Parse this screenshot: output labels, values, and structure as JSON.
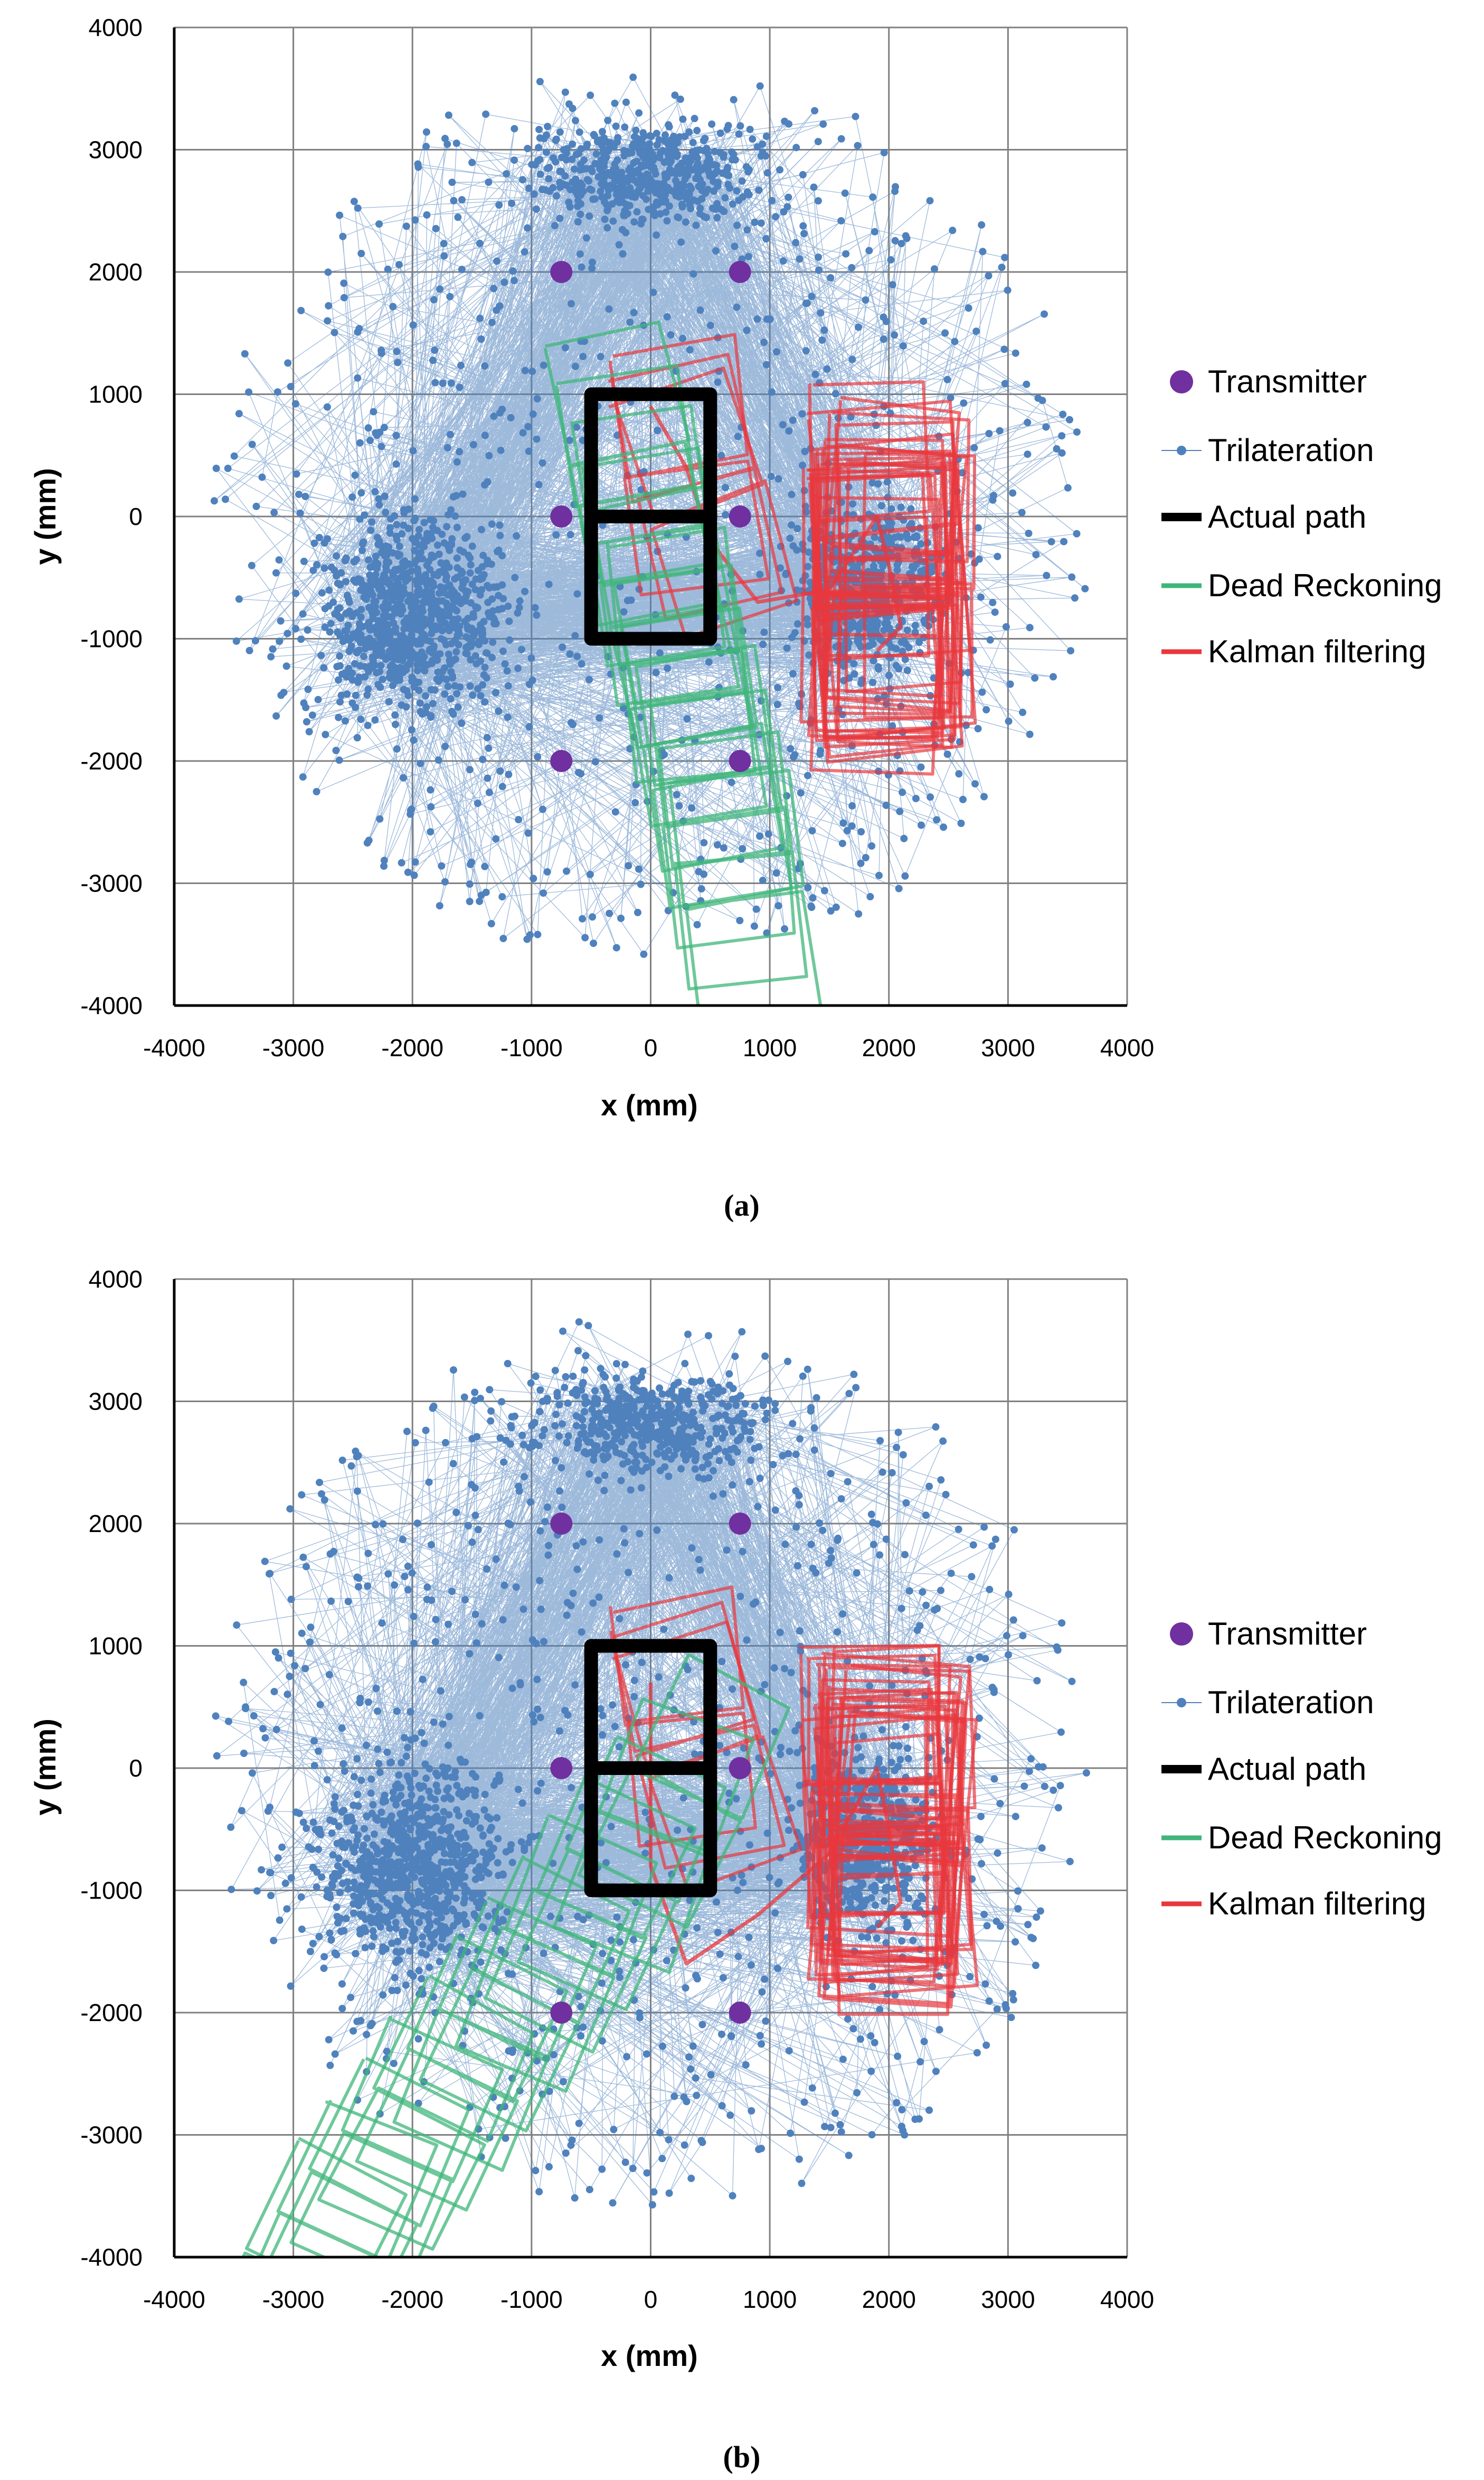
{
  "figure": {
    "captions": [
      "(a)",
      "(b)"
    ]
  },
  "colors": {
    "transmitter": "#7030a0",
    "trilateration": "#4f81bd",
    "actual_path": "#000000",
    "dead_reckoning": "#3fb57a",
    "kalman": "#e8383d",
    "grid": "#808080"
  },
  "chart_data": [
    {
      "type": "scatter",
      "panel": "(a)",
      "xlabel": "x (mm)",
      "ylabel": "y (mm)",
      "xlim": [
        -4000,
        4000
      ],
      "ylim": [
        -4000,
        4000
      ],
      "xticks": [
        -4000,
        -3000,
        -2000,
        -1000,
        0,
        1000,
        2000,
        3000,
        4000
      ],
      "yticks": [
        -4000,
        -3000,
        -2000,
        -1000,
        0,
        1000,
        2000,
        3000,
        4000
      ],
      "grid": true,
      "legend_position": "right",
      "legend": [
        "Transmitter",
        "Trilateration",
        "Actual path",
        "Dead Reckoning",
        "Kalman filtering"
      ],
      "transmitters": [
        [
          -750,
          2000
        ],
        [
          750,
          2000
        ],
        [
          -750,
          0
        ],
        [
          750,
          0
        ],
        [
          -750,
          -2000
        ],
        [
          750,
          -2000
        ]
      ],
      "trilateration_cloud": {
        "point_count": 2600,
        "x_range": [
          -3800,
          3900
        ],
        "y_range": [
          -3600,
          4000
        ],
        "dense_centers": [
          [
            -2000,
            -800
          ],
          [
            1800,
            -600
          ],
          [
            0,
            2800
          ]
        ]
      },
      "actual_path": [
        [
          -500,
          1000
        ],
        [
          500,
          1000
        ],
        [
          500,
          0
        ],
        [
          -500,
          0
        ],
        [
          -500,
          -1000
        ],
        [
          500,
          -1000
        ],
        [
          500,
          0
        ],
        [
          -500,
          0
        ],
        [
          -500,
          1000
        ]
      ],
      "dead_reckoning": {
        "start": [
          -500,
          1000
        ],
        "drift_per_step": [
          90,
          -330
        ],
        "steps": 12,
        "rotation_deg": 9
      },
      "kalman_filtering": {
        "center_path": [
          [
            0,
            900
          ],
          [
            300,
            400
          ],
          [
            500,
            -200
          ],
          [
            900,
            -700
          ],
          [
            1500,
            -600
          ],
          [
            1900,
            0
          ],
          [
            2000,
            -400
          ],
          [
            2100,
            -900
          ],
          [
            1900,
            -1100
          ]
        ],
        "cluster_center": [
          2000,
          -500
        ],
        "cluster_half_width": [
          600,
          1300
        ],
        "box_count": 22
      }
    },
    {
      "type": "scatter",
      "panel": "(b)",
      "xlabel": "x (mm)",
      "ylabel": "y (mm)",
      "xlim": [
        -4000,
        4000
      ],
      "ylim": [
        -4000,
        4000
      ],
      "xticks": [
        -4000,
        -3000,
        -2000,
        -1000,
        0,
        1000,
        2000,
        3000,
        4000
      ],
      "yticks": [
        -4000,
        -3000,
        -2000,
        -1000,
        0,
        1000,
        2000,
        3000,
        4000
      ],
      "grid": true,
      "legend_position": "right",
      "legend": [
        "Transmitter",
        "Trilateration",
        "Actual path",
        "Dead Reckoning",
        "Kalman filtering"
      ],
      "transmitters": [
        [
          -750,
          2000
        ],
        [
          750,
          2000
        ],
        [
          -750,
          0
        ],
        [
          750,
          0
        ],
        [
          -750,
          -2000
        ],
        [
          750,
          -2000
        ]
      ],
      "trilateration_cloud": {
        "point_count": 2600,
        "x_range": [
          -3800,
          3900
        ],
        "y_range": [
          -3600,
          4000
        ],
        "dense_centers": [
          [
            -2000,
            -800
          ],
          [
            1800,
            -600
          ],
          [
            0,
            2800
          ]
        ]
      },
      "actual_path": [
        [
          -500,
          1000
        ],
        [
          500,
          1000
        ],
        [
          500,
          0
        ],
        [
          -500,
          0
        ],
        [
          -500,
          -1000
        ],
        [
          500,
          -1000
        ],
        [
          500,
          0
        ],
        [
          -500,
          0
        ],
        [
          -500,
          1000
        ]
      ],
      "dead_reckoning": {
        "start": [
          0,
          300
        ],
        "drift_per_step": [
          -270,
          -330
        ],
        "steps": 13,
        "rotation_deg": -25
      },
      "kalman_filtering": {
        "center_path": [
          [
            0,
            700
          ],
          [
            0,
            -800
          ],
          [
            300,
            -1600
          ],
          [
            900,
            -1200
          ],
          [
            1500,
            -700
          ],
          [
            1900,
            0
          ],
          [
            2000,
            -500
          ],
          [
            2100,
            -1100
          ],
          [
            1900,
            -1300
          ]
        ],
        "cluster_center": [
          2000,
          -500
        ],
        "cluster_half_width": [
          600,
          1300
        ],
        "box_count": 22
      }
    }
  ]
}
